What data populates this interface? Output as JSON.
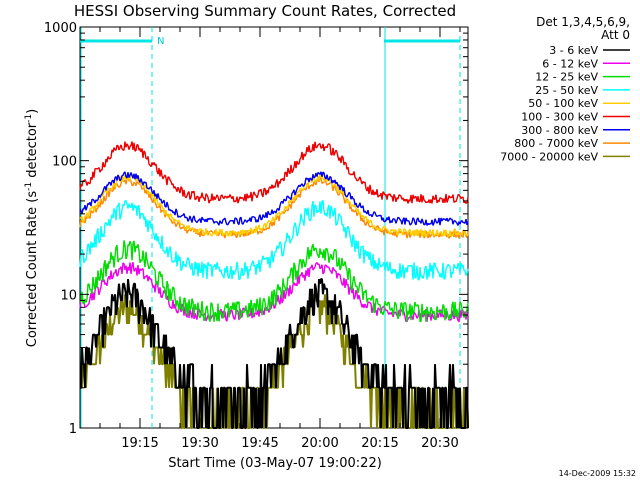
{
  "chart_data": {
    "type": "line",
    "title": "HESSI Observing Summary Count Rates, Corrected",
    "xlabel": "Start Time (03-May-07 19:00:22)",
    "ylabel_main": "Corrected Count Rate (s",
    "ylabel_exp1": "-1",
    "ylabel_mid": " detector",
    "ylabel_exp2": "-1",
    "ylabel_end": ")",
    "y_scale": "log",
    "ylim": [
      1,
      1000
    ],
    "xlim_minutes": [
      0,
      97
    ],
    "x_ticks": [
      {
        "label": "19:15",
        "minute": 15
      },
      {
        "label": "19:30",
        "minute": 30
      },
      {
        "label": "19:45",
        "minute": 45
      },
      {
        "label": "20:00",
        "minute": 60
      },
      {
        "label": "20:15",
        "minute": 75
      },
      {
        "label": "20:30",
        "minute": 90
      }
    ],
    "y_ticks": [
      {
        "label": "1",
        "value": 1
      },
      {
        "label": "10",
        "value": 10
      },
      {
        "label": "100",
        "value": 100
      },
      {
        "label": "1000",
        "value": 1000
      }
    ],
    "legend_title": "Det 1,3,4,5,6,9,",
    "legend_subtitle": "Att 0",
    "legend_position": "right",
    "flags": {
      "color": "#00e5e5",
      "bars": [
        {
          "start": 0,
          "end": 18
        },
        {
          "start": 76,
          "end": 95
        }
      ],
      "night_label": "N",
      "night_label_minute": 19,
      "dashed_lines_minutes": [
        18,
        95
      ],
      "solid_lines_minutes": [
        0,
        76
      ]
    },
    "series": [
      {
        "name": "3 - 6 keV",
        "color": "#000000",
        "peak": 10,
        "trough": 2,
        "noise": 0.1,
        "quantized": true
      },
      {
        "name": "6 - 12 keV",
        "color": "#ee00ee",
        "peak": 16,
        "trough": 7,
        "noise": 0.05,
        "quantized": false
      },
      {
        "name": "12 - 25 keV",
        "color": "#00dd00",
        "peak": 22,
        "trough": 7.5,
        "noise": 0.08,
        "quantized": false
      },
      {
        "name": "25 - 50 keV",
        "color": "#00ffff",
        "peak": 45,
        "trough": 15,
        "noise": 0.07,
        "quantized": false
      },
      {
        "name": "50 - 100 keV",
        "color": "#ffcc00",
        "peak": 75,
        "trough": 29,
        "noise": 0.03,
        "quantized": false
      },
      {
        "name": "100 - 300 keV",
        "color": "#ee0000",
        "peak": 130,
        "trough": 52,
        "noise": 0.04,
        "quantized": false
      },
      {
        "name": "300 - 800 keV",
        "color": "#0000ee",
        "peak": 78,
        "trough": 35,
        "noise": 0.03,
        "quantized": false
      },
      {
        "name": "800 - 7000 keV",
        "color": "#ff8800",
        "peak": 70,
        "trough": 28,
        "noise": 0.03,
        "quantized": false
      },
      {
        "name": "7000 - 20000 keV",
        "color": "#808000",
        "peak": 8,
        "trough": 1.5,
        "noise": 0.1,
        "quantized": true
      }
    ],
    "timestamp": "14-Dec-2009 15:32"
  }
}
